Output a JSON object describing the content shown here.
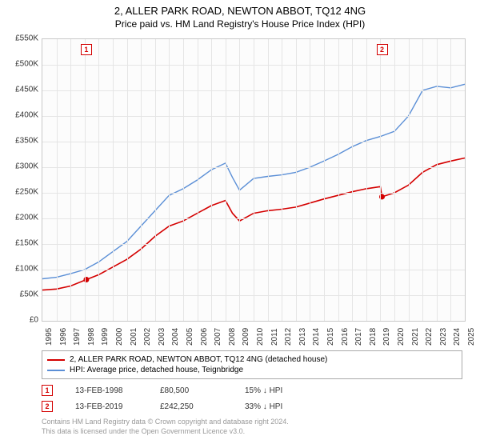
{
  "title": "2, ALLER PARK ROAD, NEWTON ABBOT, TQ12 4NG",
  "subtitle": "Price paid vs. HM Land Registry's House Price Index (HPI)",
  "chart": {
    "type": "line",
    "background_color": "#fcfcfc",
    "grid_color": "#e5e5e5",
    "border_color": "#c8c8c8",
    "ylim": [
      0,
      550000
    ],
    "ytick_step": 50000,
    "ytick_labels": [
      "£0",
      "£50K",
      "£100K",
      "£150K",
      "£200K",
      "£250K",
      "£300K",
      "£350K",
      "£400K",
      "£450K",
      "£500K",
      "£550K"
    ],
    "x_years": [
      1995,
      1996,
      1997,
      1998,
      1999,
      2000,
      2001,
      2002,
      2003,
      2004,
      2005,
      2006,
      2007,
      2008,
      2009,
      2010,
      2011,
      2012,
      2013,
      2014,
      2015,
      2016,
      2017,
      2018,
      2019,
      2020,
      2021,
      2022,
      2023,
      2024,
      2025
    ],
    "title_fontsize": 13,
    "label_fontsize": 10,
    "series": [
      {
        "name": "2, ALLER PARK ROAD, NEWTON ABBOT, TQ12 4NG (detached house)",
        "color": "#d40000",
        "width": 1.6,
        "data": [
          [
            1995.0,
            60000
          ],
          [
            1996.0,
            62000
          ],
          [
            1997.0,
            68000
          ],
          [
            1998.12,
            80500
          ],
          [
            1999.0,
            90000
          ],
          [
            2000.0,
            105000
          ],
          [
            2001.0,
            120000
          ],
          [
            2002.0,
            140000
          ],
          [
            2003.0,
            165000
          ],
          [
            2004.0,
            185000
          ],
          [
            2005.0,
            195000
          ],
          [
            2006.0,
            210000
          ],
          [
            2007.0,
            225000
          ],
          [
            2008.0,
            235000
          ],
          [
            2008.5,
            210000
          ],
          [
            2009.0,
            195000
          ],
          [
            2010.0,
            210000
          ],
          [
            2011.0,
            215000
          ],
          [
            2012.0,
            218000
          ],
          [
            2013.0,
            222000
          ],
          [
            2014.0,
            230000
          ],
          [
            2015.0,
            238000
          ],
          [
            2016.0,
            245000
          ],
          [
            2017.0,
            252000
          ],
          [
            2018.0,
            258000
          ],
          [
            2019.0,
            262000
          ],
          [
            2019.12,
            242250
          ],
          [
            2020.0,
            250000
          ],
          [
            2021.0,
            265000
          ],
          [
            2022.0,
            290000
          ],
          [
            2023.0,
            305000
          ],
          [
            2024.0,
            312000
          ],
          [
            2025.0,
            318000
          ]
        ]
      },
      {
        "name": "HPI: Average price, detached house, Teignbridge",
        "color": "#5b8fd6",
        "width": 1.4,
        "data": [
          [
            1995.0,
            82000
          ],
          [
            1996.0,
            85000
          ],
          [
            1997.0,
            92000
          ],
          [
            1998.0,
            100000
          ],
          [
            1999.0,
            115000
          ],
          [
            2000.0,
            135000
          ],
          [
            2001.0,
            155000
          ],
          [
            2002.0,
            185000
          ],
          [
            2003.0,
            215000
          ],
          [
            2004.0,
            245000
          ],
          [
            2005.0,
            258000
          ],
          [
            2006.0,
            275000
          ],
          [
            2007.0,
            295000
          ],
          [
            2008.0,
            308000
          ],
          [
            2008.5,
            280000
          ],
          [
            2009.0,
            255000
          ],
          [
            2010.0,
            278000
          ],
          [
            2011.0,
            282000
          ],
          [
            2012.0,
            285000
          ],
          [
            2013.0,
            290000
          ],
          [
            2014.0,
            300000
          ],
          [
            2015.0,
            312000
          ],
          [
            2016.0,
            325000
          ],
          [
            2017.0,
            340000
          ],
          [
            2018.0,
            352000
          ],
          [
            2019.0,
            360000
          ],
          [
            2020.0,
            370000
          ],
          [
            2021.0,
            400000
          ],
          [
            2022.0,
            450000
          ],
          [
            2023.0,
            458000
          ],
          [
            2024.0,
            455000
          ],
          [
            2025.0,
            462000
          ]
        ]
      }
    ],
    "markers": [
      {
        "num": "1",
        "year": 1998.12,
        "color": "#d40000"
      },
      {
        "num": "2",
        "year": 2019.12,
        "color": "#d40000"
      }
    ]
  },
  "legend": {
    "border_color": "#aaaaaa",
    "items": [
      {
        "color": "#d40000",
        "label": "2, ALLER PARK ROAD, NEWTON ABBOT, TQ12 4NG (detached house)"
      },
      {
        "color": "#5b8fd6",
        "label": "HPI: Average price, detached house, Teignbridge"
      }
    ]
  },
  "transactions": [
    {
      "num": "1",
      "color": "#d40000",
      "date": "13-FEB-1998",
      "price": "£80,500",
      "pct": "15% ↓ HPI"
    },
    {
      "num": "2",
      "color": "#d40000",
      "date": "13-FEB-2019",
      "price": "£242,250",
      "pct": "33% ↓ HPI"
    }
  ],
  "footer_line1": "Contains HM Land Registry data © Crown copyright and database right 2024.",
  "footer_line2": "This data is licensed under the Open Government Licence v3.0."
}
